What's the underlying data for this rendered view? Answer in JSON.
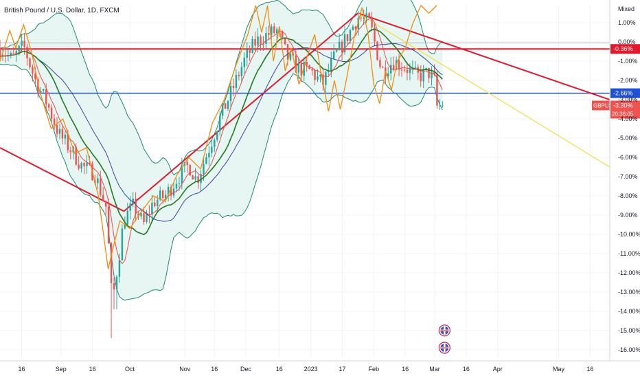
{
  "header": {
    "title": "British Pound / U.S. Dollar, 1D, FXCM",
    "scale_mode": "Mixed"
  },
  "colors": {
    "up": "#26a69a",
    "down": "#ef5350",
    "band": "#1b8a70",
    "band_fill": "#e3f4f0",
    "ma_fast": "#e84a4a",
    "ma_mid": "#1e7a1e",
    "ma_slow": "#3346a8",
    "oscillator": "#f28b0c",
    "trend_red": "#e5172b",
    "trend_yellow": "#f2e24b",
    "level_red": "#e5172b",
    "level_blue": "#1e52d6",
    "axis_text": "#131722",
    "grid": "#f0f3fa"
  },
  "icons": [
    "flag-uk-icon",
    "flag-us-icon"
  ],
  "chart_data": {
    "type": "candlestick",
    "title": "British Pound / U.S. Dollar, 1D, FXCM",
    "y_scale": "percent",
    "ylim": [
      -16.4,
      1.9
    ],
    "y_ticks": [
      "1.00%",
      "0.00%",
      "-1.00%",
      "-2.00%",
      "-3.00%",
      "-4.00%",
      "-5.00%",
      "-6.00%",
      "-7.00%",
      "-8.00%",
      "-9.00%",
      "-10.00%",
      "-11.00%",
      "-12.00%",
      "-13.00%",
      "-14.00%",
      "-15.00%",
      "-16.00%"
    ],
    "y_tick_values": [
      1,
      0,
      -1,
      -2,
      -3,
      -4,
      -5,
      -6,
      -7,
      -8,
      -9,
      -10,
      -11,
      -12,
      -13,
      -14,
      -15,
      -16
    ],
    "x_labels": [
      "16",
      "Sep",
      "16",
      "Oct",
      "Nov",
      "16",
      "Dec",
      "16",
      "2023",
      "17",
      "Feb",
      "16",
      "Mar",
      "16",
      "Apr",
      "May",
      "16"
    ],
    "x_label_positions": [
      11,
      31,
      47,
      66,
      94,
      109,
      125,
      142,
      158,
      174,
      190,
      206,
      221,
      237,
      253,
      284,
      300
    ],
    "x_range": [
      0,
      310
    ],
    "level_lines": [
      {
        "value": -0.36,
        "label": "-0.36%",
        "color": "level_red"
      },
      {
        "value": -2.66,
        "label": "-2.66%",
        "color": "level_blue"
      }
    ],
    "last_price": {
      "symbol": "GBPUSD",
      "value": -3.3,
      "label": "-3.30%",
      "countdown": "20:36:05"
    },
    "trend_lines": [
      {
        "color": "trend_red",
        "x1": 0,
        "y1": -5.5,
        "x2": 63,
        "y2": -8.8
      },
      {
        "color": "trend_red",
        "x1": 63,
        "y1": -8.8,
        "x2": 182,
        "y2": 1.5
      },
      {
        "color": "trend_red",
        "x1": 182,
        "y1": 1.5,
        "x2": 310,
        "y2": -3.0
      },
      {
        "color": "trend_yellow",
        "x1": 182,
        "y1": 1.5,
        "x2": 310,
        "y2": -6.5
      }
    ],
    "support_segment": {
      "x1": 120,
      "x2": 225,
      "y": -2.66
    },
    "horizontal_top_line": {
      "y": -0.05
    },
    "anchors": [
      {
        "x": 0,
        "y": -0.3
      },
      {
        "x": 6,
        "y": -0.9
      },
      {
        "x": 12,
        "y": -0.2
      },
      {
        "x": 18,
        "y": -2.0
      },
      {
        "x": 24,
        "y": -3.2
      },
      {
        "x": 30,
        "y": -4.8
      },
      {
        "x": 36,
        "y": -5.6
      },
      {
        "x": 42,
        "y": -6.5
      },
      {
        "x": 48,
        "y": -6.8
      },
      {
        "x": 54,
        "y": -8.6
      },
      {
        "x": 57,
        "y": -13.6
      },
      {
        "x": 60,
        "y": -11.5
      },
      {
        "x": 63,
        "y": -9.2
      },
      {
        "x": 68,
        "y": -8.5
      },
      {
        "x": 73,
        "y": -9.5
      },
      {
        "x": 78,
        "y": -8.3
      },
      {
        "x": 84,
        "y": -8.0
      },
      {
        "x": 90,
        "y": -7.1
      },
      {
        "x": 96,
        "y": -6.4
      },
      {
        "x": 100,
        "y": -7.2
      },
      {
        "x": 106,
        "y": -5.6
      },
      {
        "x": 112,
        "y": -3.9
      },
      {
        "x": 118,
        "y": -2.5
      },
      {
        "x": 124,
        "y": -1.0
      },
      {
        "x": 130,
        "y": 0.0
      },
      {
        "x": 136,
        "y": 0.4
      },
      {
        "x": 141,
        "y": 0.6
      },
      {
        "x": 146,
        "y": -0.8
      },
      {
        "x": 152,
        "y": -1.4
      },
      {
        "x": 158,
        "y": -1.5
      },
      {
        "x": 164,
        "y": -2.2
      },
      {
        "x": 170,
        "y": -0.8
      },
      {
        "x": 176,
        "y": 0.2
      },
      {
        "x": 182,
        "y": 1.3
      },
      {
        "x": 188,
        "y": 1.0
      },
      {
        "x": 194,
        "y": -1.5
      },
      {
        "x": 200,
        "y": -1.0
      },
      {
        "x": 206,
        "y": -1.3
      },
      {
        "x": 212,
        "y": -1.8
      },
      {
        "x": 218,
        "y": -1.6
      },
      {
        "x": 222,
        "y": -2.2
      },
      {
        "x": 225,
        "y": -3.3
      }
    ],
    "oscillator_points": [
      {
        "x": 0,
        "y": -1.0
      },
      {
        "x": 5,
        "y": 0.6
      },
      {
        "x": 8,
        "y": -0.3
      },
      {
        "x": 12,
        "y": 0.9
      },
      {
        "x": 16,
        "y": -0.5
      },
      {
        "x": 20,
        "y": -2.5
      },
      {
        "x": 26,
        "y": -4.5
      },
      {
        "x": 32,
        "y": -4.0
      },
      {
        "x": 38,
        "y": -5.8
      },
      {
        "x": 44,
        "y": -5.5
      },
      {
        "x": 50,
        "y": -8.0
      },
      {
        "x": 55,
        "y": -11.8
      },
      {
        "x": 58,
        "y": -10.5
      },
      {
        "x": 61,
        "y": -9.3
      },
      {
        "x": 66,
        "y": -9.7
      },
      {
        "x": 72,
        "y": -8.8
      },
      {
        "x": 78,
        "y": -8.0
      },
      {
        "x": 84,
        "y": -8.3
      },
      {
        "x": 90,
        "y": -6.9
      },
      {
        "x": 96,
        "y": -6.0
      },
      {
        "x": 102,
        "y": -6.6
      },
      {
        "x": 108,
        "y": -4.2
      },
      {
        "x": 114,
        "y": -3.0
      },
      {
        "x": 120,
        "y": -1.2
      },
      {
        "x": 126,
        "y": 0.4
      },
      {
        "x": 130,
        "y": 1.9
      },
      {
        "x": 133,
        "y": 0.5
      },
      {
        "x": 136,
        "y": 1.9
      },
      {
        "x": 139,
        "y": -1.0
      },
      {
        "x": 142,
        "y": 0.8
      },
      {
        "x": 145,
        "y": -1.5
      },
      {
        "x": 148,
        "y": -0.3
      },
      {
        "x": 152,
        "y": -2.2
      },
      {
        "x": 156,
        "y": -0.8
      },
      {
        "x": 160,
        "y": 0.4
      },
      {
        "x": 163,
        "y": -1.5
      },
      {
        "x": 167,
        "y": -3.6
      },
      {
        "x": 170,
        "y": -2.0
      },
      {
        "x": 173,
        "y": -3.5
      },
      {
        "x": 176,
        "y": -2.0
      },
      {
        "x": 180,
        "y": 0.2
      },
      {
        "x": 184,
        "y": 1.8
      },
      {
        "x": 187,
        "y": 0.5
      },
      {
        "x": 190,
        "y": -2.2
      },
      {
        "x": 193,
        "y": -3.2
      },
      {
        "x": 196,
        "y": -1.5
      },
      {
        "x": 199,
        "y": -2.5
      },
      {
        "x": 202,
        "y": -1.0
      },
      {
        "x": 206,
        "y": -0.3
      },
      {
        "x": 210,
        "y": 1.0
      },
      {
        "x": 214,
        "y": 1.9
      },
      {
        "x": 218,
        "y": 1.5
      },
      {
        "x": 222,
        "y": 1.9
      }
    ],
    "event_flags": {
      "x": 226,
      "y_values": [
        -15.0,
        -15.9
      ]
    }
  }
}
